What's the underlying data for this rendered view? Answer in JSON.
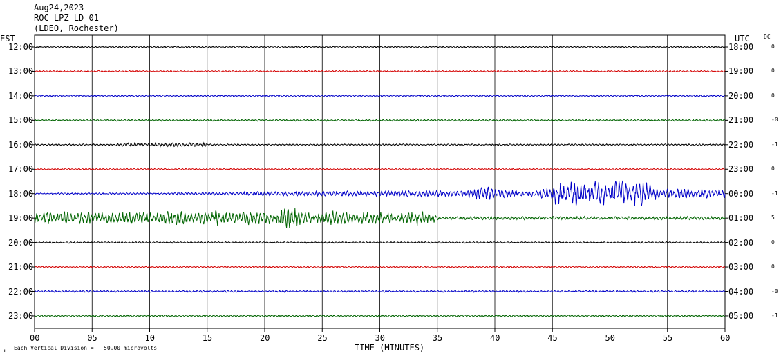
{
  "header": {
    "date": "Aug24,2023",
    "station": "ROC LPZ LD 01",
    "location": "(LDEO, Rochester)"
  },
  "labels": {
    "left_tz": "EST",
    "right_tz": "UTC",
    "dc": "DC",
    "xlabel": "TIME (MINUTES)",
    "scale_note": "Each Vertical Division =   50.00 microvolts"
  },
  "colors": {
    "trace_cycle": [
      "#000000",
      "#d40000",
      "#0000c8",
      "#006400"
    ],
    "grid": "#000000"
  },
  "chart_data": {
    "type": "line",
    "title": "ROC LPZ LD 01",
    "xlabel": "TIME (MINUTES)",
    "ylabel": "",
    "xlim": [
      0,
      60
    ],
    "x_ticks": [
      "00",
      "05",
      "10",
      "15",
      "20",
      "25",
      "30",
      "35",
      "40",
      "45",
      "50",
      "55",
      "60"
    ],
    "grid": true,
    "vertical_division_microvolts": 50.0,
    "rows": [
      {
        "est": "12:00",
        "utc": "18:00",
        "dc": "0",
        "color": "#000000",
        "activity": "quiet"
      },
      {
        "est": "13:00",
        "utc": "19:00",
        "dc": "0",
        "color": "#d40000",
        "activity": "quiet"
      },
      {
        "est": "14:00",
        "utc": "20:00",
        "dc": "0",
        "color": "#0000c8",
        "activity": "quiet"
      },
      {
        "est": "15:00",
        "utc": "21:00",
        "dc": "-0",
        "color": "#006400",
        "activity": "quiet"
      },
      {
        "est": "16:00",
        "utc": "22:00",
        "dc": "-1",
        "color": "#000000",
        "activity": "quiet, small wave train 07-15 min"
      },
      {
        "est": "17:00",
        "utc": "23:00",
        "dc": "0",
        "color": "#d40000",
        "activity": "quiet"
      },
      {
        "est": "18:00",
        "utc": "00:00",
        "dc": "-1",
        "color": "#0000c8",
        "activity": "growing oscillation from 12 min, large bursts 45-54 min"
      },
      {
        "est": "19:00",
        "utc": "01:00",
        "dc": "5",
        "color": "#006400",
        "activity": "large oscillation 00-35 min, quieter after"
      },
      {
        "est": "20:00",
        "utc": "02:00",
        "dc": "0",
        "color": "#000000",
        "activity": "quiet"
      },
      {
        "est": "21:00",
        "utc": "03:00",
        "dc": "0",
        "color": "#d40000",
        "activity": "quiet"
      },
      {
        "est": "22:00",
        "utc": "04:00",
        "dc": "-0",
        "color": "#0000c8",
        "activity": "quiet"
      },
      {
        "est": "23:00",
        "utc": "05:00",
        "dc": "-1",
        "color": "#006400",
        "activity": "quiet"
      }
    ]
  }
}
